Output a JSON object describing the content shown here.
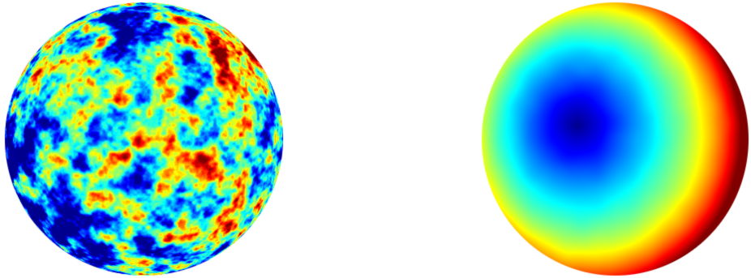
{
  "figure": {
    "background": "#ffffff",
    "spheres": [
      {
        "name": "noisy-field-sphere",
        "palette": [
          "#00008f",
          "#0000ff",
          "#0080ff",
          "#00ffff",
          "#80ff80",
          "#ffff00",
          "#ff8000",
          "#ff0000",
          "#800000"
        ]
      },
      {
        "name": "smooth-field-sphere",
        "palette": [
          "#00008f",
          "#0000ff",
          "#0080ff",
          "#00ffff",
          "#80ff80",
          "#ffff00",
          "#ff8000",
          "#ff0000",
          "#800000"
        ]
      }
    ]
  }
}
